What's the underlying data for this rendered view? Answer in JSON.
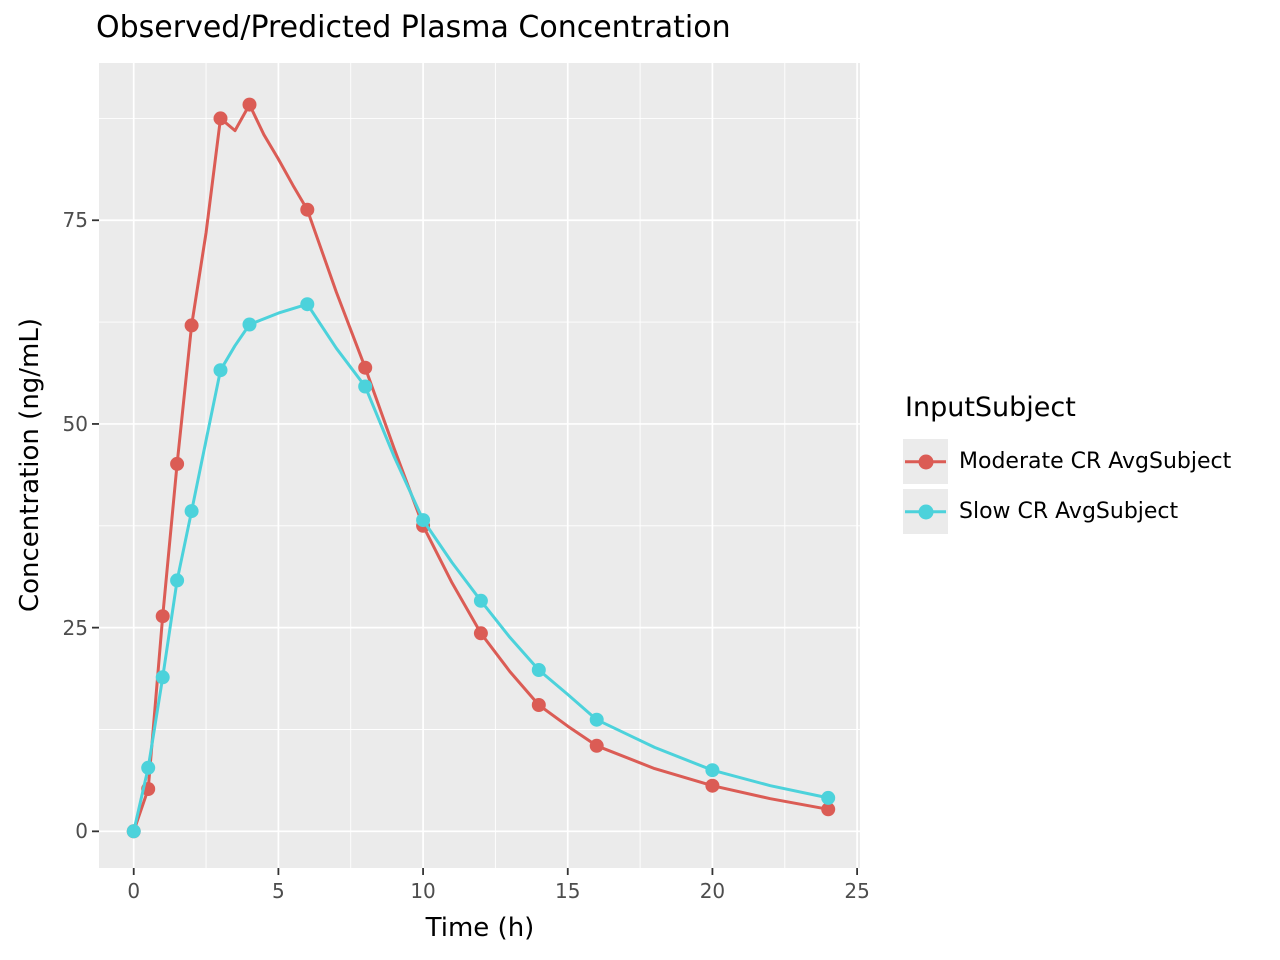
{
  "chart_data": {
    "type": "line",
    "title": "Observed/Predicted Plasma Concentration",
    "xlabel": "Time (h)",
    "ylabel": "Concentration (ng/mL)",
    "x_ticks": [
      0,
      5,
      10,
      15,
      20,
      25
    ],
    "x_minor_ticks": [
      2.5,
      7.5,
      12.5,
      17.5,
      22.5
    ],
    "y_ticks": [
      0,
      25,
      50,
      75
    ],
    "y_minor_ticks": [
      12.5,
      37.5,
      62.5,
      87.5
    ],
    "xlim": [
      -1.2,
      25.1
    ],
    "ylim": [
      -4.5,
      94.3
    ],
    "legend_title": "InputSubject",
    "series": [
      {
        "name": "Moderate CR AvgSubject",
        "color": "#DB5C55",
        "x": [
          0,
          0.5,
          1,
          1.5,
          2,
          3,
          4,
          6,
          8,
          10,
          12,
          14,
          16,
          20,
          24
        ],
        "y": [
          0,
          5.2,
          26.4,
          45.1,
          62.1,
          87.5,
          89.2,
          76.3,
          56.9,
          37.5,
          24.3,
          15.5,
          10.5,
          5.6,
          2.7
        ],
        "line_extra_points": [
          [
            2.5,
            73.5
          ],
          [
            3.5,
            86.0
          ],
          [
            4.5,
            85.5
          ],
          [
            5,
            82.5
          ],
          [
            5.5,
            79.3
          ],
          [
            7,
            66.2
          ],
          [
            9,
            47.0
          ],
          [
            11,
            30.5
          ],
          [
            13,
            19.6
          ],
          [
            15,
            12.9
          ],
          [
            18,
            7.7
          ],
          [
            22,
            4.0
          ]
        ]
      },
      {
        "name": "Slow CR AvgSubject",
        "color": "#4CD2DB",
        "x": [
          0,
          0.5,
          1,
          1.5,
          2,
          3,
          4,
          6,
          8,
          10,
          12,
          14,
          16,
          20,
          24
        ],
        "y": [
          0,
          7.8,
          18.9,
          30.8,
          39.3,
          56.6,
          62.2,
          64.7,
          54.6,
          38.2,
          28.3,
          19.8,
          13.7,
          7.5,
          4.1
        ],
        "line_extra_points": [
          [
            2.5,
            48.0
          ],
          [
            3.5,
            59.6
          ],
          [
            5,
            63.6
          ],
          [
            7,
            59.3
          ],
          [
            9,
            46.0
          ],
          [
            11,
            33.0
          ],
          [
            13,
            23.8
          ],
          [
            15,
            16.8
          ],
          [
            18,
            10.3
          ],
          [
            22,
            5.6
          ]
        ]
      }
    ],
    "colors": {
      "panel_bg": "#EBEBEB",
      "grid": "#FFFFFF",
      "tick_mark": "#333333",
      "tick_label": "#4D4D4D",
      "text": "#000000"
    },
    "legend_position": "right",
    "grid": "on"
  }
}
